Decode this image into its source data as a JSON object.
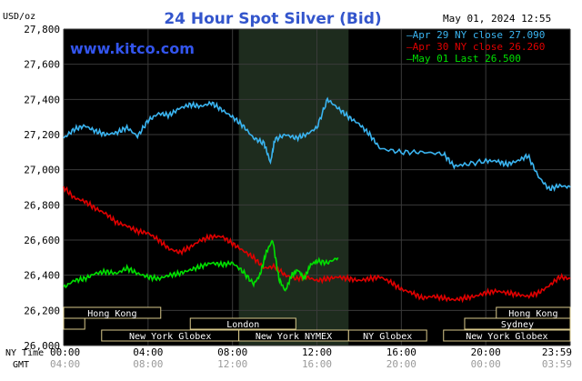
{
  "chart_data": {
    "type": "line",
    "title": "24 Hour Spot Silver (Bid)",
    "brand": "www.kitco.com",
    "datetime": "May 01, 2024 12:55",
    "ylabel": "USD/oz",
    "ylim": [
      26000,
      27800
    ],
    "yticks": [
      26000,
      26200,
      26400,
      26600,
      26800,
      27000,
      27200,
      27400,
      27600,
      27800
    ],
    "ytick_labels": [
      "26,000",
      "26,200",
      "26,400",
      "26,600",
      "26,800",
      "27,000",
      "27,200",
      "27,400",
      "27,600",
      "27,800"
    ],
    "xlim": [
      0,
      24
    ],
    "xticks": [
      0,
      4,
      8,
      12,
      16,
      20,
      24
    ],
    "xtick_labels_ny": [
      "00:00",
      "04:00",
      "08:00",
      "12:00",
      "16:00",
      "20:00",
      "23:59"
    ],
    "xtick_labels_gmt": [
      "04:00",
      "08:00",
      "12:00",
      "16:00",
      "20:00",
      "00:00",
      "03:59"
    ],
    "xaxis_row_labels": [
      "NY Time",
      "GMT"
    ],
    "shaded_region": [
      8.3,
      13.5
    ],
    "grid": true,
    "legend_position": "top-right",
    "series": [
      {
        "name": "Apr 29 NY close 27.090",
        "color": "#3ab4f0",
        "x": [
          0.0,
          0.5,
          1.0,
          1.5,
          2.0,
          2.5,
          3.0,
          3.5,
          4.0,
          4.5,
          5.0,
          5.5,
          6.0,
          6.5,
          7.0,
          7.5,
          8.0,
          8.5,
          9.0,
          9.5,
          9.8,
          10.0,
          10.5,
          11.0,
          11.5,
          12.0,
          12.5,
          13.0,
          13.5,
          14.0,
          14.5,
          15.0,
          16.0,
          17.0,
          18.0,
          18.5,
          19.0,
          20.0,
          20.5,
          21.0,
          21.5,
          22.0,
          22.5,
          23.0,
          23.5,
          24.0
        ],
        "y": [
          27180,
          27230,
          27250,
          27220,
          27200,
          27210,
          27240,
          27190,
          27280,
          27320,
          27310,
          27350,
          27370,
          27360,
          27380,
          27340,
          27300,
          27250,
          27180,
          27150,
          27040,
          27170,
          27200,
          27180,
          27200,
          27240,
          27400,
          27350,
          27300,
          27260,
          27200,
          27120,
          27100,
          27100,
          27090,
          27020,
          27030,
          27050,
          27050,
          27030,
          27050,
          27080,
          26960,
          26890,
          26910,
          26900
        ]
      },
      {
        "name": "Apr 30 NY close 26.260",
        "color": "#e00000",
        "x": [
          0.0,
          0.5,
          1.0,
          1.5,
          2.0,
          2.5,
          3.0,
          3.5,
          4.0,
          4.5,
          5.0,
          5.5,
          6.0,
          6.5,
          7.0,
          7.5,
          8.0,
          8.5,
          9.0,
          9.5,
          10.0,
          10.5,
          11.0,
          11.5,
          12.0,
          12.5,
          13.0,
          13.5,
          14.0,
          14.5,
          15.0,
          15.5,
          16.0,
          16.5,
          17.0,
          17.5,
          18.0,
          18.5,
          19.0,
          19.5,
          20.0,
          20.5,
          21.0,
          21.5,
          22.0,
          22.5,
          23.0,
          23.5,
          24.0
        ],
        "y": [
          26900,
          26840,
          26820,
          26780,
          26750,
          26700,
          26680,
          26650,
          26640,
          26600,
          26550,
          26530,
          26560,
          26600,
          26620,
          26620,
          26580,
          26540,
          26500,
          26440,
          26450,
          26400,
          26380,
          26390,
          26370,
          26380,
          26390,
          26380,
          26370,
          26380,
          26390,
          26360,
          26320,
          26300,
          26270,
          26280,
          26270,
          26260,
          26270,
          26280,
          26300,
          26310,
          26300,
          26290,
          26280,
          26300,
          26340,
          26390,
          26380
        ]
      },
      {
        "name": "May 01 Last 26.500",
        "color": "#00e000",
        "x": [
          0.0,
          0.5,
          1.0,
          1.5,
          2.0,
          2.5,
          3.0,
          3.5,
          4.0,
          4.5,
          5.0,
          5.5,
          6.0,
          6.5,
          7.0,
          7.5,
          8.0,
          8.5,
          9.0,
          9.3,
          9.6,
          9.9,
          10.2,
          10.5,
          10.8,
          11.1,
          11.4,
          11.7,
          12.0,
          12.5,
          13.0
        ],
        "y": [
          26330,
          26370,
          26380,
          26410,
          26420,
          26410,
          26440,
          26410,
          26390,
          26380,
          26400,
          26410,
          26430,
          26450,
          26470,
          26460,
          26470,
          26420,
          26350,
          26400,
          26530,
          26600,
          26380,
          26310,
          26400,
          26430,
          26380,
          26460,
          26480,
          26470,
          26500
        ]
      }
    ],
    "sessions": [
      {
        "name": "Hong Kong",
        "row": 0,
        "start": 0.0,
        "end": 4.6
      },
      {
        "name": "",
        "row": 1,
        "start": 0.0,
        "end": 1.0
      },
      {
        "name": "London",
        "row": 1,
        "start": 6.0,
        "end": 11.0
      },
      {
        "name": "New York Globex",
        "row": 2,
        "start": 1.8,
        "end": 8.3
      },
      {
        "name": "New York NYMEX",
        "row": 2,
        "start": 8.3,
        "end": 13.5
      },
      {
        "name": "NY Globex",
        "row": 2,
        "start": 13.5,
        "end": 17.2
      },
      {
        "name": "Hong Kong",
        "row": 0,
        "start": 20.5,
        "end": 24.0
      },
      {
        "name": "Sydney",
        "row": 1,
        "start": 19.0,
        "end": 24.0
      },
      {
        "name": "New York Globex",
        "row": 2,
        "start": 18.0,
        "end": 24.0
      }
    ]
  }
}
